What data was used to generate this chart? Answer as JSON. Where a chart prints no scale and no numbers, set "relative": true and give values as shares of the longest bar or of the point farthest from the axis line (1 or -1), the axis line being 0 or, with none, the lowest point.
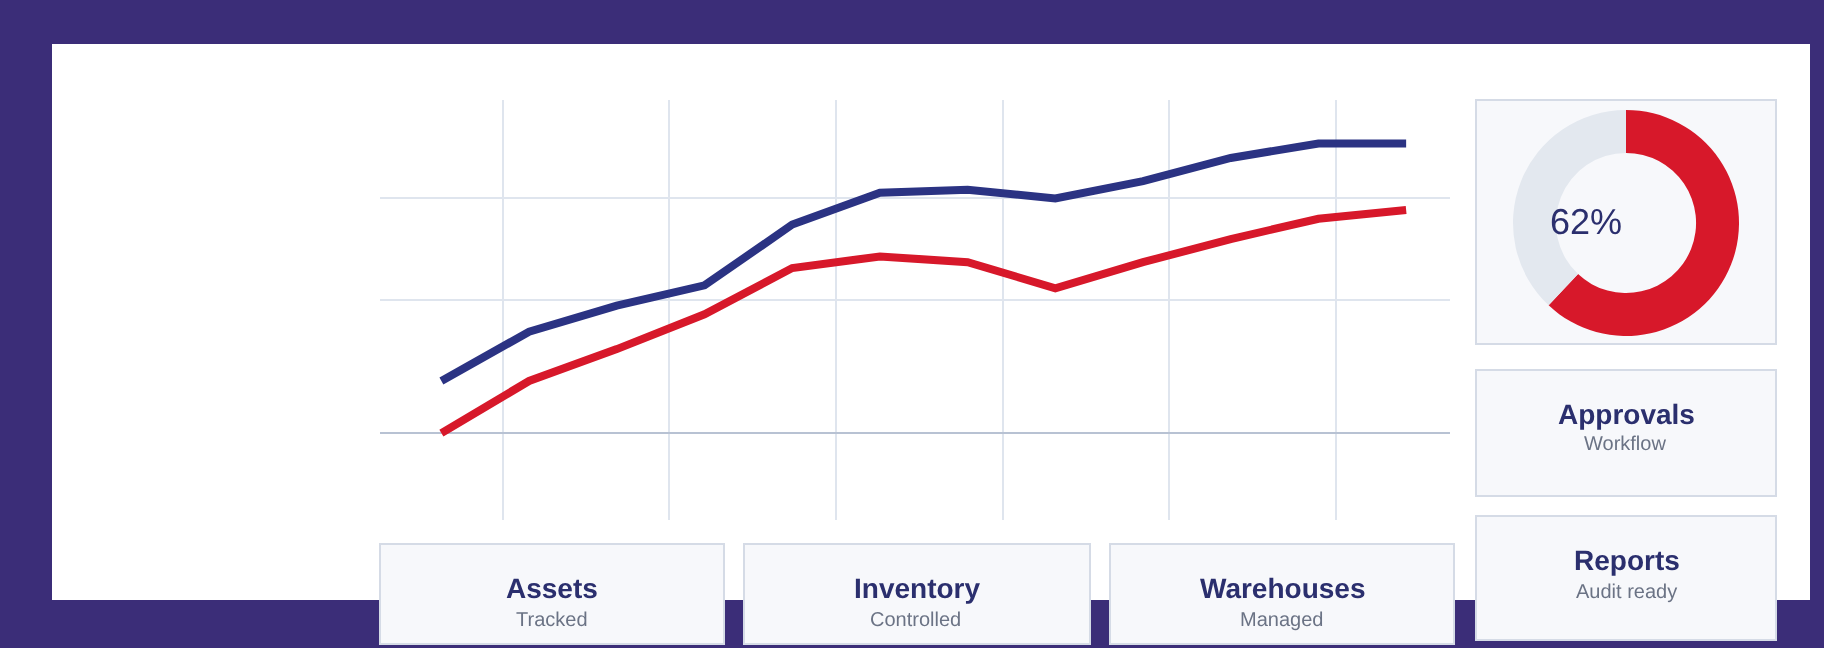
{
  "chart_data": [
    {
      "type": "line",
      "relative": true,
      "categories": [
        null,
        null,
        null,
        null,
        null,
        null,
        null,
        null,
        null,
        null,
        null,
        null
      ],
      "grid": true,
      "marker": "none",
      "line_style": "solid",
      "series": [
        {
          "color": "#2b3383",
          "values": [
            0.18,
            0.35,
            0.44,
            0.51,
            0.72,
            0.83,
            0.84,
            0.81,
            0.87,
            0.95,
            1.0,
            1.0
          ]
        },
        {
          "color": "#d7182a",
          "values": [
            0,
            0.18,
            0.29,
            0.41,
            0.57,
            0.61,
            0.59,
            0.5,
            0.59,
            0.67,
            0.74,
            0.77
          ]
        }
      ]
    },
    {
      "type": "donut",
      "categories": [
        null,
        null
      ],
      "values": [
        62,
        38
      ],
      "colors": [
        "#d7182a",
        "#e3e8ef"
      ],
      "annotations": [
        "62%"
      ]
    },
    {
      "type": "other",
      "annotations": [
        "Assets",
        "Tracked",
        "Inventory",
        "Controlled",
        "Warehouses",
        "Managed",
        "Approvals",
        "Workflow",
        "Reports",
        "Audit ready"
      ]
    }
  ]
}
